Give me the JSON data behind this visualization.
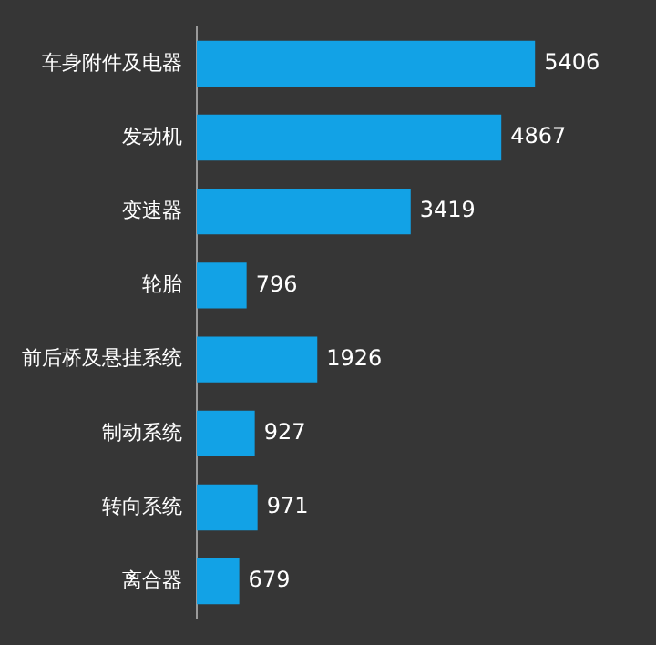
{
  "chart_data": {
    "type": "bar",
    "orientation": "horizontal",
    "categories": [
      "车身附件及电器",
      "发动机",
      "变速器",
      "轮胎",
      "前后桥及悬挂系统",
      "制动系统",
      "转向系统",
      "离合器"
    ],
    "values": [
      5406,
      4867,
      3419,
      796,
      1926,
      927,
      971,
      679
    ],
    "color": "#12a2e6",
    "data_labels": true,
    "tick_labels": "y",
    "grid": false,
    "legend": false
  }
}
